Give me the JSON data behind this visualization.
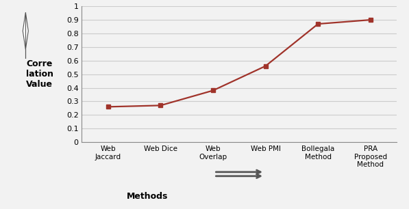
{
  "x_labels": [
    "Web\nJaccard",
    "Web Dice",
    "Web\nOverlap",
    "Web PMI",
    "Bollegala\nMethod",
    "PRA\nProposed\nMethod"
  ],
  "y_values": [
    0.26,
    0.27,
    0.38,
    0.56,
    0.87,
    0.9
  ],
  "line_color": "#A0332A",
  "marker": "s",
  "marker_size": 5,
  "ylim": [
    0,
    1.0
  ],
  "yticks": [
    0,
    0.1,
    0.2,
    0.3,
    0.4,
    0.5,
    0.6,
    0.7,
    0.8,
    0.9,
    1
  ],
  "ylabel": "Corre\nlation\nValue",
  "xlabel": "Methods",
  "background_color": "#f2f2f2",
  "grid_color": "#cccccc",
  "spine_color": "#888888"
}
